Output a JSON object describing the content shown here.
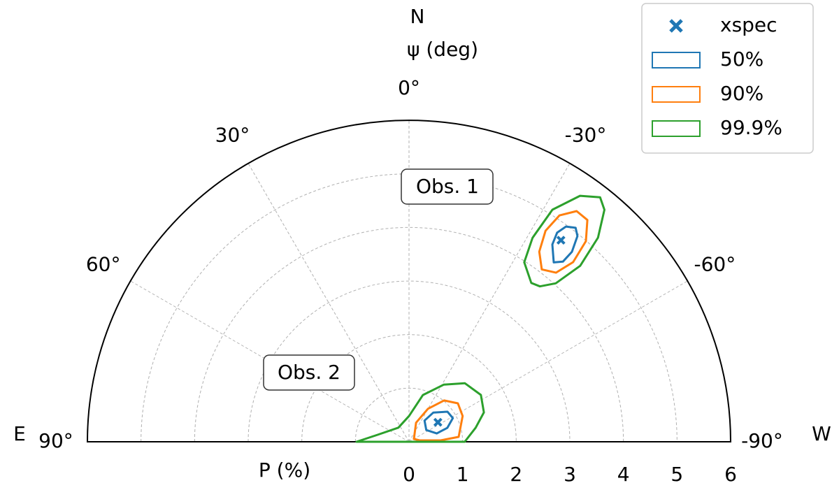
{
  "chart_data": {
    "type": "polar",
    "rlim": [
      0,
      6
    ],
    "rticks": [
      0,
      1,
      2,
      3,
      4,
      5,
      6
    ],
    "thetalim": [
      -90,
      90
    ],
    "thetaticks": [
      {
        "value": 90,
        "label": "90°"
      },
      {
        "value": 60,
        "label": "60°"
      },
      {
        "value": 30,
        "label": "30°"
      },
      {
        "value": 0,
        "label": "0°"
      },
      {
        "value": -30,
        "label": "-30°"
      },
      {
        "value": -60,
        "label": "-60°"
      },
      {
        "value": -90,
        "label": "-90°"
      }
    ],
    "grid": true,
    "theta_label": "ψ (deg)",
    "r_label": "P (%)",
    "compass": {
      "north": "N",
      "east": "E",
      "west": "W"
    },
    "annotations": [
      "Obs. 1",
      "Obs. 2"
    ],
    "legend": "upper right",
    "points": {
      "name": "xspec",
      "color": "#1f77b4",
      "psi": [
        -37,
        -56
      ],
      "P": [
        4.71,
        0.65
      ]
    },
    "contours": [
      {
        "name": "50%",
        "color": "#1f77b4",
        "regions": [
          {
            "psi": [
              -38.9,
              -36.0,
              -35.3,
              -36.1,
              -37.9,
              -39.3,
              -40.6,
              -40.5
            ],
            "P": [
              4.3,
              4.55,
              4.78,
              4.97,
              5.06,
              4.96,
              4.67,
              4.42
            ]
          },
          {
            "psi": [
              -55.8,
              -36.3,
              -39.8,
              -52.0,
              -61.6,
              -70.0,
              -73.3
            ],
            "P": [
              0.39,
              0.49,
              0.71,
              0.91,
              0.93,
              0.76,
              0.54
            ]
          }
        ]
      },
      {
        "name": "90%",
        "color": "#ff7f0e",
        "regions": [
          {
            "psi": [
              -37.6,
              -34.4,
              -32.9,
              -33.6,
              -36.0,
              -38.8,
              -41.4,
              -42.4,
              -41.0
            ],
            "P": [
              4.06,
              4.3,
              4.69,
              5.07,
              5.32,
              5.31,
              4.99,
              4.54,
              4.18
            ]
          },
          {
            "psi": [
              -60.3,
              -20.3,
              -29.9,
              -40.3,
              -51.8,
              -64.3,
              -84.4,
              -87.5,
              -82.4
            ],
            "P": [
              0.105,
              0.38,
              0.71,
              1.01,
              1.16,
              1.11,
              0.93,
              0.59,
              0.2
            ]
          }
        ]
      },
      {
        "name": "99.9%",
        "color": "#2ca02c",
        "regions": [
          {
            "psi": [
              -37.6,
              -32.7,
              -31.2,
              -31.7,
              -34.8,
              -38.0,
              -40.1,
              -42.8,
              -44.2,
              -42.8,
              -40.1
            ],
            "P": [
              3.74,
              3.98,
              4.45,
              5.09,
              5.59,
              5.79,
              5.66,
              5.19,
              4.58,
              4.03,
              3.79
            ]
          },
          {
            "psi": [
              90,
              77.5,
              36.9,
              0,
              -16.6,
              -31.4,
              -43.6,
              -56.9,
              -68.6,
              -78.1,
              -90
            ],
            "P": [
              0.98,
              0.6,
              0.33,
              0.48,
              0.91,
              1.25,
              1.51,
              1.6,
              1.5,
              1.27,
              1.04
            ]
          }
        ]
      }
    ]
  }
}
